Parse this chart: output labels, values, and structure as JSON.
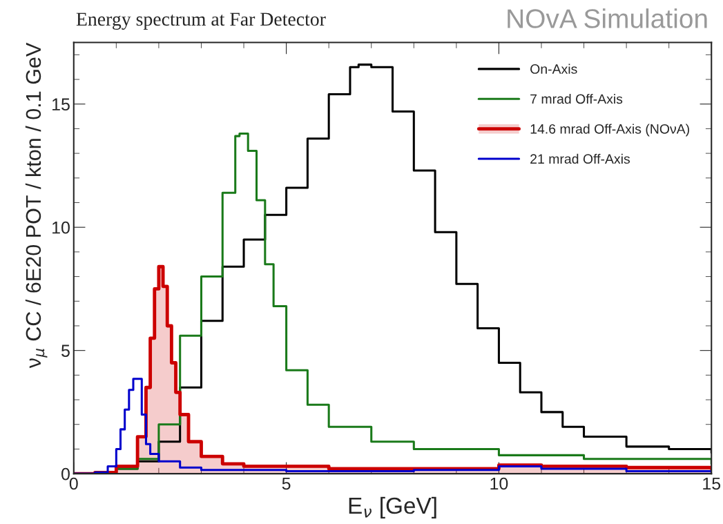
{
  "chart_data": {
    "type": "step",
    "title": "Energy spectrum at Far Detector",
    "xlabel": "E$_{ν}$ [GeV]",
    "ylabel": "ν$_{μ}$ CC / 6E20 POT / kton / 0.1 GeV",
    "annotations": [
      "NOvA Simulation"
    ],
    "xlim": [
      0,
      15
    ],
    "ylim": [
      0,
      17.5
    ],
    "xticks": [
      0,
      5,
      10,
      15
    ],
    "yticks": [
      0,
      5,
      10,
      15
    ],
    "grid": false,
    "legend": "top right",
    "series": [
      {
        "name": "On-Axis",
        "color": "#000000",
        "x": [
          0,
          0.5,
          1,
          1.5,
          2,
          2.5,
          3,
          3.5,
          4,
          4.5,
          5,
          5.5,
          6,
          6.5,
          6.7,
          7,
          7.5,
          8,
          8.5,
          9,
          9.5,
          10,
          10.5,
          11,
          11.5,
          12,
          13,
          14,
          15
        ],
        "values": [
          0,
          0.05,
          0.2,
          0.5,
          1.3,
          3.5,
          6.2,
          8.4,
          9.5,
          10.5,
          11.6,
          13.6,
          15.4,
          16.5,
          16.6,
          16.5,
          14.7,
          12.3,
          9.8,
          7.7,
          5.9,
          4.5,
          3.3,
          2.5,
          1.9,
          1.5,
          1.1,
          1.0,
          0.85
        ]
      },
      {
        "name": "7 mrad Off-Axis",
        "color": "#1a7a1a",
        "x": [
          0,
          0.5,
          1,
          1.5,
          2,
          2.5,
          3,
          3.5,
          3.8,
          3.9,
          4.1,
          4.3,
          4.5,
          4.7,
          5,
          5.5,
          6,
          7,
          8,
          10,
          12,
          15
        ],
        "values": [
          0,
          0.05,
          0.2,
          0.6,
          2,
          5.6,
          8,
          11.4,
          13.7,
          13.8,
          13.1,
          11.1,
          8.5,
          6.8,
          4.2,
          2.8,
          1.9,
          1.3,
          1.0,
          0.75,
          0.6,
          0.4
        ]
      },
      {
        "name": "14.6 mrad Off-Axis (NOνA)",
        "type": "area",
        "color": "#cc0000",
        "x": [
          0,
          0.5,
          1,
          1.5,
          1.7,
          1.8,
          1.9,
          2.0,
          2.1,
          2.2,
          2.3,
          2.4,
          2.5,
          2.7,
          3,
          3.5,
          4,
          6,
          8,
          10,
          11,
          13,
          15
        ],
        "values": [
          0,
          0.05,
          0.3,
          1.5,
          3.5,
          5.5,
          7.5,
          8.4,
          7.6,
          6,
          4.5,
          3.3,
          2.4,
          1.3,
          0.7,
          0.4,
          0.3,
          0.2,
          0.2,
          0.35,
          0.3,
          0.25,
          0.2
        ]
      },
      {
        "name": "21 mrad Off-Axis",
        "color": "#0000cc",
        "x": [
          0,
          0.5,
          0.8,
          1.0,
          1.1,
          1.2,
          1.3,
          1.4,
          1.5,
          1.6,
          1.7,
          1.8,
          2,
          2.5,
          3,
          5,
          8,
          10,
          11,
          13,
          15
        ],
        "values": [
          0,
          0.05,
          0.3,
          1,
          1.8,
          2.6,
          3.4,
          3.85,
          3.85,
          2.4,
          1.2,
          0.8,
          0.5,
          0.25,
          0.15,
          0.1,
          0.15,
          0.3,
          0.2,
          0.1,
          0.05
        ]
      }
    ]
  }
}
